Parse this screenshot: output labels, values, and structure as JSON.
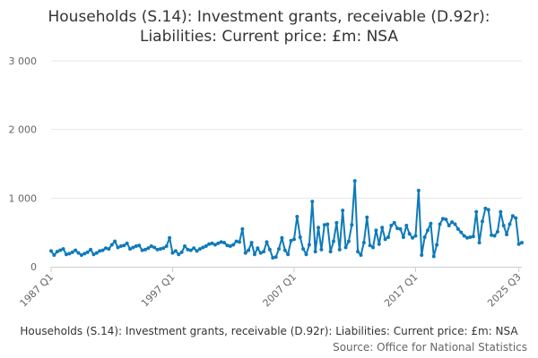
{
  "chart_data": {
    "type": "line",
    "title_lines": [
      "Households (S.14): Investment grants, receivable (D.92r):",
      "Liabilities: Current price: £m: NSA"
    ],
    "xlabel": "",
    "ylabel": "",
    "ylim": [
      0,
      3000
    ],
    "y_ticks": [
      {
        "value": 0,
        "label": "0"
      },
      {
        "value": 1000,
        "label": "1 000"
      },
      {
        "value": 2000,
        "label": "2 000"
      },
      {
        "value": 3000,
        "label": "3 000"
      }
    ],
    "x_ticks": [
      {
        "index": 0,
        "label": "1987 Q1"
      },
      {
        "index": 40,
        "label": "1997 Q1"
      },
      {
        "index": 80,
        "label": "2007 Q1"
      },
      {
        "index": 120,
        "label": "2017 Q1"
      },
      {
        "index": 154,
        "label": "2025 Q3"
      }
    ],
    "grid": true,
    "legend": "none",
    "series": [
      {
        "name": "Households (S.14): Investment grants, receivable (D.92r): Liabilities: Current price: £m: NSA",
        "color": "#0f7ab8",
        "start": "1987 Q1",
        "values": [
          230,
          170,
          220,
          240,
          260,
          180,
          190,
          210,
          240,
          200,
          170,
          190,
          210,
          250,
          180,
          200,
          230,
          240,
          270,
          260,
          320,
          370,
          280,
          300,
          310,
          340,
          260,
          280,
          300,
          310,
          240,
          250,
          270,
          300,
          280,
          250,
          260,
          270,
          300,
          420,
          200,
          230,
          180,
          210,
          300,
          250,
          240,
          270,
          230,
          260,
          280,
          300,
          330,
          340,
          320,
          340,
          360,
          350,
          310,
          300,
          320,
          370,
          360,
          550,
          200,
          240,
          350,
          180,
          270,
          200,
          220,
          360,
          250,
          130,
          140,
          260,
          420,
          240,
          180,
          380,
          400,
          730,
          430,
          260,
          180,
          320,
          950,
          220,
          570,
          250,
          610,
          620,
          220,
          370,
          640,
          250,
          820,
          280,
          370,
          610,
          1250,
          220,
          170,
          350,
          720,
          310,
          280,
          530,
          330,
          570,
          400,
          430,
          600,
          640,
          560,
          550,
          430,
          600,
          480,
          420,
          450,
          1110,
          170,
          430,
          530,
          630,
          150,
          320,
          620,
          700,
          690,
          600,
          650,
          620,
          550,
          500,
          450,
          420,
          430,
          440,
          800,
          350,
          660,
          850,
          830,
          460,
          450,
          510,
          800,
          600,
          470,
          620,
          740,
          710,
          330,
          350
        ]
      }
    ]
  },
  "footer": {
    "caption": "Households (S.14): Investment grants, receivable (D.92r): Liabilities: Current price: £m: NSA",
    "source": "Source: Office for National Statistics"
  }
}
